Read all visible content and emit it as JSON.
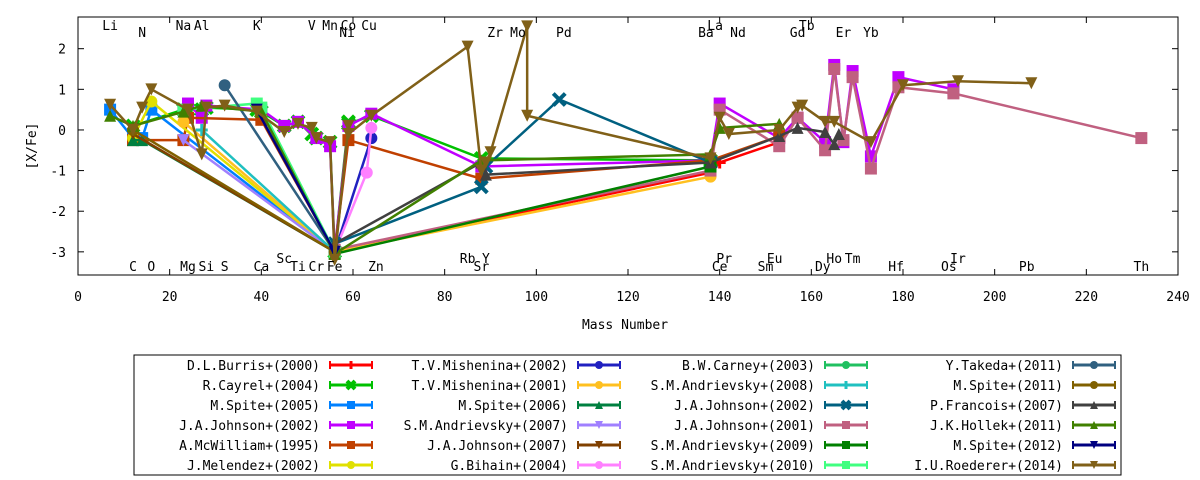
{
  "chart_data": {
    "type": "line",
    "title": "",
    "xlabel": "Mass Number",
    "ylabel": "[X/Fe]",
    "xlim": [
      0,
      240
    ],
    "ylim": [
      -3.57,
      2.78
    ],
    "xticks": [
      0,
      20,
      40,
      60,
      80,
      100,
      120,
      140,
      160,
      180,
      200,
      220,
      240
    ],
    "yticks": [
      -3,
      -2,
      -1,
      0,
      1,
      2
    ],
    "grid": false,
    "legend_position": "bottom",
    "element_labels_top": [
      {
        "name": "Li",
        "x": 7,
        "row": 0
      },
      {
        "name": "N",
        "x": 14,
        "row": 1
      },
      {
        "name": "Na",
        "x": 23,
        "row": 0
      },
      {
        "name": "Al",
        "x": 27,
        "row": 0
      },
      {
        "name": "K",
        "x": 39,
        "row": 0
      },
      {
        "name": "V",
        "x": 51,
        "row": 0
      },
      {
        "name": "Mn",
        "x": 55,
        "row": 0
      },
      {
        "name": "Co",
        "x": 59,
        "row": 0
      },
      {
        "name": "Ni",
        "x": 58.7,
        "row": 1
      },
      {
        "name": "Cu",
        "x": 63.5,
        "row": 0
      },
      {
        "name": "Zr",
        "x": 91,
        "row": 1
      },
      {
        "name": "Mo",
        "x": 96,
        "row": 1
      },
      {
        "name": "Pd",
        "x": 106,
        "row": 1
      },
      {
        "name": "La",
        "x": 139,
        "row": 0
      },
      {
        "name": "Ba",
        "x": 137,
        "row": 1
      },
      {
        "name": "Nd",
        "x": 144,
        "row": 1
      },
      {
        "name": "Tb",
        "x": 159,
        "row": 0
      },
      {
        "name": "Gd",
        "x": 157,
        "row": 1
      },
      {
        "name": "Er",
        "x": 167,
        "row": 1
      },
      {
        "name": "Yb",
        "x": 173,
        "row": 1
      }
    ],
    "element_labels_bottom": [
      {
        "name": "C",
        "x": 12,
        "row": 1
      },
      {
        "name": "O",
        "x": 16,
        "row": 1
      },
      {
        "name": "Mg",
        "x": 24,
        "row": 1
      },
      {
        "name": "Si",
        "x": 28,
        "row": 1
      },
      {
        "name": "S",
        "x": 32,
        "row": 1
      },
      {
        "name": "Ca",
        "x": 40,
        "row": 1
      },
      {
        "name": "Sc",
        "x": 45,
        "row": 0
      },
      {
        "name": "Ti",
        "x": 48,
        "row": 1
      },
      {
        "name": "Cr",
        "x": 52,
        "row": 1
      },
      {
        "name": "Fe",
        "x": 56,
        "row": 1
      },
      {
        "name": "Zn",
        "x": 65,
        "row": 1
      },
      {
        "name": "Rb",
        "x": 85,
        "row": 0
      },
      {
        "name": "Y",
        "x": 89,
        "row": 0
      },
      {
        "name": "Sr",
        "x": 88,
        "row": 1
      },
      {
        "name": "Pr",
        "x": 141,
        "row": 0
      },
      {
        "name": "Ce",
        "x": 140,
        "row": 1
      },
      {
        "name": "Eu",
        "x": 152,
        "row": 0
      },
      {
        "name": "Sm",
        "x": 150,
        "row": 1
      },
      {
        "name": "Ho",
        "x": 165,
        "row": 0
      },
      {
        "name": "Tm",
        "x": 169,
        "row": 0
      },
      {
        "name": "Dy",
        "x": 162.5,
        "row": 1
      },
      {
        "name": "Hf",
        "x": 178.5,
        "row": 1
      },
      {
        "name": "Ir",
        "x": 192,
        "row": 0
      },
      {
        "name": "Os",
        "x": 190,
        "row": 1
      },
      {
        "name": "Pb",
        "x": 207,
        "row": 1
      },
      {
        "name": "Th",
        "x": 232,
        "row": 1
      }
    ],
    "series": [
      {
        "name": "D.L.Burris+(2000)",
        "color": "#ff0000",
        "marker": "plus",
        "points": [
          [
            56,
            -3.0
          ],
          [
            138,
            -1.05
          ],
          [
            140,
            -0.8
          ],
          [
            153,
            -0.3
          ]
        ]
      },
      {
        "name": "R.Cayrel+(2004)",
        "color": "#00c000",
        "marker": "cross",
        "points": [
          [
            12,
            0.1
          ],
          [
            23,
            0.5
          ],
          [
            24,
            0.5
          ],
          [
            27,
            0.5
          ],
          [
            28,
            0.55
          ],
          [
            39,
            0.5
          ],
          [
            40,
            0.45
          ],
          [
            45,
            0.1
          ],
          [
            48,
            0.2
          ],
          [
            51,
            -0.1
          ],
          [
            52,
            -0.2
          ],
          [
            55,
            -0.3
          ],
          [
            56,
            -3.0
          ],
          [
            59,
            0.2
          ],
          [
            59,
            0.15
          ],
          [
            64,
            0.35
          ],
          [
            88,
            -0.7
          ],
          [
            138,
            -0.75
          ]
        ]
      },
      {
        "name": "M.Spite+(2005)",
        "color": "#0080ff",
        "marker": "square",
        "points": [
          [
            7,
            0.5
          ],
          [
            12,
            -0.2
          ],
          [
            14,
            -0.2
          ],
          [
            16,
            0.5
          ],
          [
            56,
            -3.0
          ]
        ]
      },
      {
        "name": "J.A.Johnson+(2002)",
        "color": "#c000ff",
        "marker": "square",
        "points": [
          [
            23,
            0.5
          ],
          [
            24,
            0.65
          ],
          [
            27,
            0.3
          ],
          [
            28,
            0.6
          ],
          [
            40,
            0.5
          ],
          [
            45,
            0.1
          ],
          [
            48,
            0.2
          ],
          [
            52,
            -0.2
          ],
          [
            55,
            -0.4
          ],
          [
            56,
            -3.0
          ],
          [
            59,
            0.1
          ],
          [
            64,
            0.4
          ],
          [
            88,
            -0.9
          ],
          [
            138,
            -0.75
          ],
          [
            140,
            0.65
          ],
          [
            153,
            -0.2
          ],
          [
            157,
            0.3
          ],
          [
            163,
            -0.3
          ],
          [
            165,
            1.6
          ],
          [
            167,
            -0.3
          ],
          [
            169,
            1.45
          ],
          [
            173,
            -0.65
          ],
          [
            179,
            1.3
          ],
          [
            191,
            1.0
          ]
        ]
      },
      {
        "name": "A.McWilliam+(1995)",
        "color": "#c04000",
        "marker": "square",
        "points": [
          [
            12,
            -0.25
          ],
          [
            23,
            -0.25
          ],
          [
            24,
            0.3
          ],
          [
            40,
            0.25
          ],
          [
            56,
            -3.0
          ],
          [
            59,
            -0.25
          ],
          [
            88,
            -1.2
          ],
          [
            138,
            -0.75
          ],
          [
            153,
            -0.15
          ]
        ]
      },
      {
        "name": "J.Melendez+(2002)",
        "color": "#e0e000",
        "marker": "circle",
        "points": [
          [
            12,
            -0.2
          ],
          [
            16,
            0.7
          ],
          [
            56,
            -3.0
          ]
        ]
      },
      {
        "name": "T.V.Mishenina+(2002)",
        "color": "#2020c0",
        "marker": "circle",
        "points": [
          [
            56,
            -3.0
          ],
          [
            64,
            -0.2
          ]
        ]
      },
      {
        "name": "T.V.Mishenina+(2001)",
        "color": "#ffc020",
        "marker": "circle",
        "points": [
          [
            23,
            0.2
          ],
          [
            56,
            -3.0
          ],
          [
            138,
            -1.15
          ]
        ]
      },
      {
        "name": "M.Spite+(2006)",
        "color": "#008040",
        "marker": "triangle",
        "points": [
          [
            12,
            -0.25
          ],
          [
            14,
            -0.25
          ],
          [
            56,
            -3.0
          ]
        ]
      },
      {
        "name": "S.M.Andrievsky+(2007)",
        "color": "#a080ff",
        "marker": "triangle-down",
        "points": [
          [
            23,
            -0.25
          ],
          [
            56,
            -3.0
          ]
        ]
      },
      {
        "name": "J.A.Johnson+(2007)",
        "color": "#804000",
        "marker": "triangle-down",
        "points": [
          [
            12,
            -0.1
          ],
          [
            56,
            -3.0
          ]
        ]
      },
      {
        "name": "G.Bihain+(2004)",
        "color": "#ff80ff",
        "marker": "circle",
        "points": [
          [
            56,
            -3.0
          ],
          [
            63,
            -1.05
          ],
          [
            64,
            0.05
          ]
        ]
      },
      {
        "name": "B.W.Carney+(2003)",
        "color": "#20c060",
        "marker": "circle",
        "points": [
          [
            56,
            -3.0
          ]
        ]
      },
      {
        "name": "S.M.Andrievsky+(2008)",
        "color": "#20c0c0",
        "marker": "plus",
        "points": [
          [
            27,
            0.0
          ],
          [
            56,
            -3.0
          ]
        ]
      },
      {
        "name": "J.A.Johnson+(2002)",
        "color": "#006080",
        "marker": "cross",
        "points": [
          [
            56,
            -2.8
          ],
          [
            88,
            -1.4
          ],
          [
            89,
            -0.9
          ],
          [
            105,
            0.75
          ],
          [
            138,
            -0.8
          ]
        ]
      },
      {
        "name": "J.A.Johnson+(2001)",
        "color": "#c06080",
        "marker": "square",
        "points": [
          [
            56,
            -2.95
          ],
          [
            138,
            -1.0
          ],
          [
            140,
            0.5
          ],
          [
            153,
            -0.4
          ],
          [
            157,
            0.3
          ],
          [
            163,
            -0.5
          ],
          [
            165,
            1.5
          ],
          [
            167,
            -0.25
          ],
          [
            169,
            1.3
          ],
          [
            173,
            -0.95
          ],
          [
            179,
            1.05
          ],
          [
            191,
            0.9
          ],
          [
            232,
            -0.2
          ]
        ]
      },
      {
        "name": "S.M.Andrievsky+(2009)",
        "color": "#008000",
        "marker": "square",
        "points": [
          [
            56,
            -3.05
          ],
          [
            138,
            -0.9
          ]
        ]
      },
      {
        "name": "S.M.Andrievsky+(2010)",
        "color": "#40ff80",
        "marker": "square",
        "points": [
          [
            23,
            0.5
          ],
          [
            39,
            0.65
          ],
          [
            40,
            0.55
          ],
          [
            56,
            -3.0
          ]
        ]
      },
      {
        "name": "Y.Takeda+(2011)",
        "color": "#306080",
        "marker": "circle",
        "points": [
          [
            32,
            1.1
          ],
          [
            56,
            -3.0
          ]
        ]
      },
      {
        "name": "M.Spite+(2011)",
        "color": "#806000",
        "marker": "circle",
        "points": [
          [
            12,
            0.0
          ],
          [
            56,
            -3.0
          ]
        ]
      },
      {
        "name": "P.Francois+(2007)",
        "color": "#404040",
        "marker": "triangle",
        "points": [
          [
            56,
            -2.8
          ],
          [
            88,
            -0.8
          ],
          [
            89,
            -1.1
          ],
          [
            138,
            -0.8
          ],
          [
            153,
            -0.15
          ],
          [
            157,
            0.05
          ],
          [
            163,
            -0.05
          ],
          [
            165,
            -0.35
          ],
          [
            166,
            -0.1
          ]
        ]
      },
      {
        "name": "J.K.Hollek+(2011)",
        "color": "#408000",
        "marker": "triangle",
        "points": [
          [
            7,
            0.35
          ],
          [
            12,
            0.1
          ],
          [
            23,
            0.45
          ],
          [
            27,
            0.6
          ],
          [
            40,
            0.45
          ],
          [
            56,
            -3.05
          ],
          [
            88,
            -0.75
          ],
          [
            138,
            -0.6
          ],
          [
            140,
            0.05
          ],
          [
            153,
            0.15
          ]
        ]
      },
      {
        "name": "M.Spite+(2012)",
        "color": "#000080",
        "marker": "triangle-down",
        "points": [
          [
            39,
            0.5
          ],
          [
            56,
            -3.0
          ]
        ]
      },
      {
        "name": "I.U.Roederer+(2014)",
        "color": "#806018",
        "marker": "triangle-down",
        "points": [
          [
            7,
            0.62
          ],
          [
            12,
            0.0
          ],
          [
            14,
            0.55
          ],
          [
            16,
            1.0
          ],
          [
            24,
            0.5
          ],
          [
            27,
            -0.6
          ],
          [
            28,
            0.55
          ],
          [
            32,
            0.6
          ],
          [
            39,
            0.45
          ],
          [
            45,
            -0.05
          ],
          [
            48,
            0.15
          ],
          [
            51,
            0.05
          ],
          [
            52,
            -0.2
          ],
          [
            55,
            -0.3
          ],
          [
            56,
            -3.2
          ],
          [
            59,
            0.1
          ],
          [
            59,
            -0.1
          ],
          [
            64,
            0.35
          ],
          [
            85,
            2.05
          ],
          [
            88,
            -1.0
          ],
          [
            89,
            -0.8
          ],
          [
            90,
            -0.55
          ],
          [
            98,
            2.55
          ],
          [
            98,
            0.35
          ],
          [
            138,
            -0.7
          ],
          [
            140,
            0.3
          ],
          [
            142,
            -0.1
          ],
          [
            153,
            0.0
          ],
          [
            157,
            0.55
          ],
          [
            158,
            0.6
          ],
          [
            163,
            0.2
          ],
          [
            165,
            0.2
          ],
          [
            173,
            -0.3
          ],
          [
            180,
            1.1
          ],
          [
            192,
            1.2
          ],
          [
            208,
            1.15
          ]
        ]
      }
    ]
  }
}
